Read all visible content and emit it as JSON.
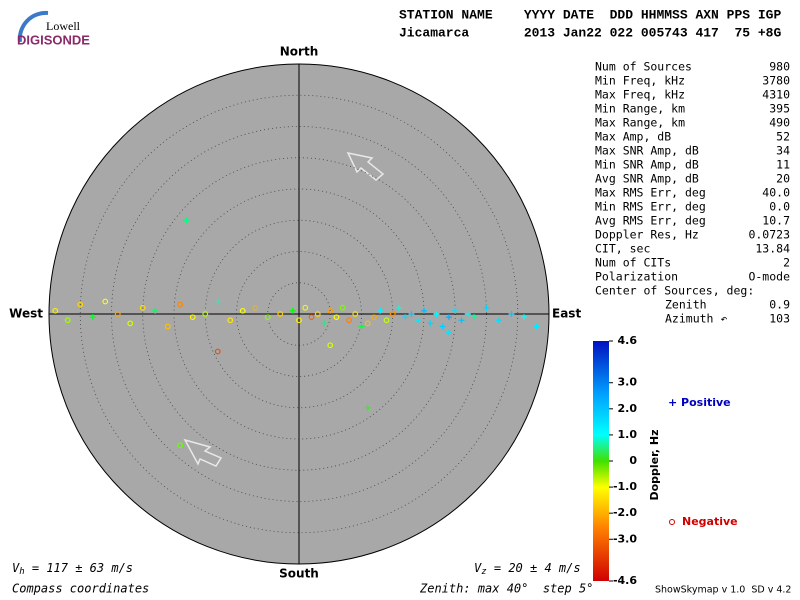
{
  "logo": {
    "top": "Lowell",
    "bottom": "DIGISONDE"
  },
  "header": {
    "labels": "STATION NAME    YYYY DATE  DDD HHMMSS AXN PPS IGP",
    "values": "Jicamarca       2013 Jan22 022 005743 417  75 +8G"
  },
  "stats": {
    "rows": [
      [
        "Num of Sources",
        "980"
      ],
      [
        "Min Freq, kHz",
        "3780"
      ],
      [
        "Max Freq, kHz",
        "4310"
      ],
      [
        "Min Range, km",
        "395"
      ],
      [
        "Max Range, km",
        "490"
      ],
      [
        "Max Amp, dB",
        "52"
      ],
      [
        "Max SNR Amp, dB",
        "34"
      ],
      [
        "Min SNR Amp, dB",
        "11"
      ],
      [
        "Avg SNR Amp, dB",
        "20"
      ],
      [
        "Max RMS Err, deg",
        "40.0"
      ],
      [
        "Min RMS Err, deg",
        "0.0"
      ],
      [
        "Avg RMS Err, deg",
        "10.7"
      ],
      [
        "Doppler Res, Hz",
        "0.0723"
      ],
      [
        "CIT, sec",
        "13.84"
      ],
      [
        "Num of CITs",
        "2"
      ],
      [
        "Polarization",
        "O-mode"
      ]
    ],
    "center_title": "Center of Sources, deg:",
    "center_rows": [
      [
        "Zenith",
        "0.9"
      ],
      [
        "Azimuth ↶",
        "103"
      ]
    ]
  },
  "chart_data": {
    "type": "scatter",
    "compass": {
      "north": "North",
      "south": "South",
      "west": "West",
      "east": "East"
    },
    "zenith_max": 40,
    "zenith_step": 5,
    "x": [
      -39,
      -37,
      -35,
      -33,
      -31,
      -29,
      -27,
      -25,
      -23,
      -21,
      -19,
      -17,
      -15,
      -13,
      -11,
      -9,
      -7,
      -5,
      -3,
      -1,
      0,
      1,
      2,
      3,
      4,
      5,
      6,
      7,
      8,
      9,
      10,
      11,
      12,
      13,
      14,
      15,
      16,
      17,
      18,
      19,
      20,
      21,
      22,
      23,
      24,
      25,
      26,
      27,
      28,
      30,
      32,
      34,
      36,
      38,
      -18,
      -19,
      11,
      -13,
      5,
      24
    ],
    "y": [
      0.5,
      -1,
      1.5,
      -0.5,
      2,
      0,
      -1.5,
      1,
      0.5,
      -2,
      1.5,
      -0.5,
      0,
      2,
      -1,
      0.5,
      1,
      -0.5,
      0,
      0.5,
      -1,
      1,
      -0.5,
      0,
      -1.5,
      0.5,
      -0.5,
      1,
      -1,
      0,
      -2,
      -1.5,
      -0.5,
      0.5,
      -1,
      0,
      1,
      -0.5,
      0,
      -1,
      0.5,
      -1.5,
      0,
      -2,
      -0.5,
      0.5,
      -1,
      0,
      -0.5,
      1,
      -1,
      0,
      -0.5,
      -2,
      15,
      -21,
      -15,
      -6,
      -5,
      -3
    ],
    "doppler": [
      -1.2,
      -0.5,
      -1.5,
      0.3,
      -1.0,
      -2.1,
      -0.8,
      -1.4,
      0.5,
      -1.8,
      -2.5,
      -1.1,
      -0.6,
      0.8,
      -1.3,
      -1.0,
      -2.0,
      -0.4,
      -1.6,
      0.2,
      -1.2,
      -0.9,
      -3.1,
      -1.5,
      0.6,
      -2.2,
      -1.0,
      -0.3,
      -2.6,
      -1.4,
      0.4,
      -1.8,
      -2.0,
      1.2,
      -0.7,
      -2.4,
      0.9,
      1.5,
      1.8,
      1.3,
      2.0,
      1.6,
      1.1,
      1.7,
      2.2,
      1.4,
      1.9,
      1.2,
      0.7,
      1.6,
      1.5,
      1.8,
      1.0,
      1.3,
      0.6,
      -0.2,
      0.1,
      -3.5,
      -0.8,
      1.4
    ],
    "colorbar": {
      "title": "Doppler, Hz",
      "ticks": [
        4.6,
        {
          "value": 3,
          "label": "3.0"
        },
        {
          "value": 2,
          "label": "2.0"
        },
        {
          "value": 1,
          "label": "1.0"
        },
        0,
        {
          "value": -1,
          "label": "-1.0"
        },
        {
          "value": -2,
          "label": "-2.0"
        },
        {
          "value": -3,
          "label": "-3.0"
        },
        -4.6
      ]
    },
    "legend": {
      "positive": "Positive",
      "negative": "Negative"
    }
  },
  "footer": {
    "vh": {
      "symbol": "V",
      "sub": "h",
      "text": " = 117 ± 63 m/s"
    },
    "vz": {
      "symbol": "V",
      "sub": "z",
      "text": " = 20 ± 4 m/s"
    },
    "coords": "Compass coordinates",
    "zenith": "Zenith: max 40°  step 5°",
    "version": "ShowSkymap v 1.0  SD v 4.2"
  }
}
